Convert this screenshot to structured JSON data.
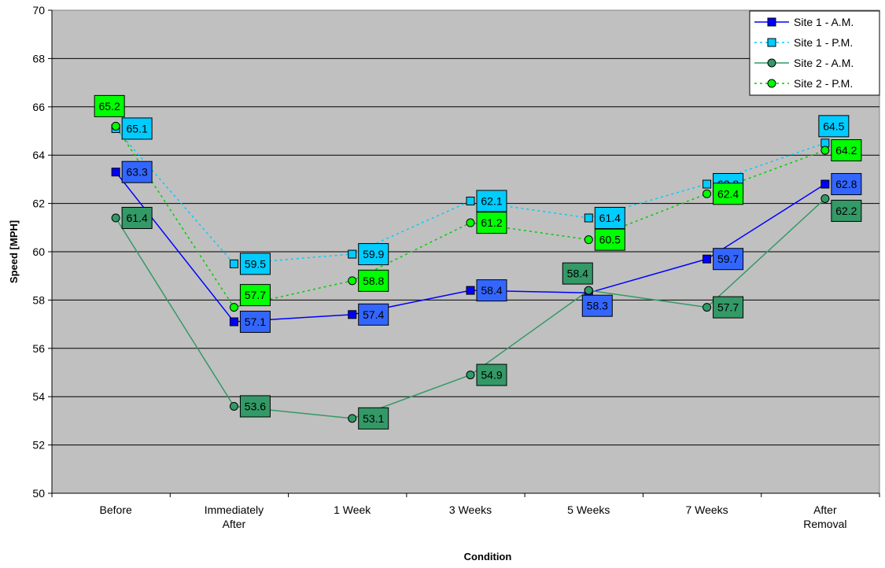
{
  "chart_data": {
    "type": "line",
    "xlabel": "Condition",
    "ylabel": "Speed [MPH]",
    "ylim": [
      50,
      70
    ],
    "ytick_step": 2,
    "grid": true,
    "legend_position": "top-right",
    "categories": [
      [
        "Before"
      ],
      [
        "Immediately",
        "After"
      ],
      [
        "1 Week"
      ],
      [
        "3 Weeks"
      ],
      [
        "5 Weeks"
      ],
      [
        "7 Weeks"
      ],
      [
        "After",
        "Removal"
      ]
    ],
    "series": [
      {
        "name": "Site 1 - A.M.",
        "values": [
          63.3,
          57.1,
          57.4,
          58.4,
          58.3,
          59.7,
          62.8
        ],
        "line_color": "#0000ff",
        "marker_fill": "#0000ff",
        "marker": "square",
        "dash": "solid",
        "label_bg": "#3366ff"
      },
      {
        "name": "Site 1 - P.M.",
        "values": [
          65.1,
          59.5,
          59.9,
          62.1,
          61.4,
          62.8,
          64.5
        ],
        "line_color": "#00ccff",
        "marker_fill": "#00ccff",
        "marker": "square",
        "dash": "dotted",
        "label_bg": "#00ccff"
      },
      {
        "name": "Site 2 - A.M.",
        "values": [
          61.4,
          53.6,
          53.1,
          54.9,
          58.4,
          57.7,
          62.2
        ],
        "line_color": "#339966",
        "marker_fill": "#339966",
        "marker": "circle",
        "dash": "solid",
        "label_bg": "#339966"
      },
      {
        "name": "Site 2 - P.M.",
        "values": [
          65.2,
          57.7,
          58.8,
          61.2,
          60.5,
          62.4,
          64.2
        ],
        "line_color": "#00cc00",
        "marker_fill": "#00ff00",
        "marker": "circle",
        "dash": "dotted",
        "label_bg": "#00ff00"
      }
    ],
    "plot_background": "#c0c0c0"
  }
}
